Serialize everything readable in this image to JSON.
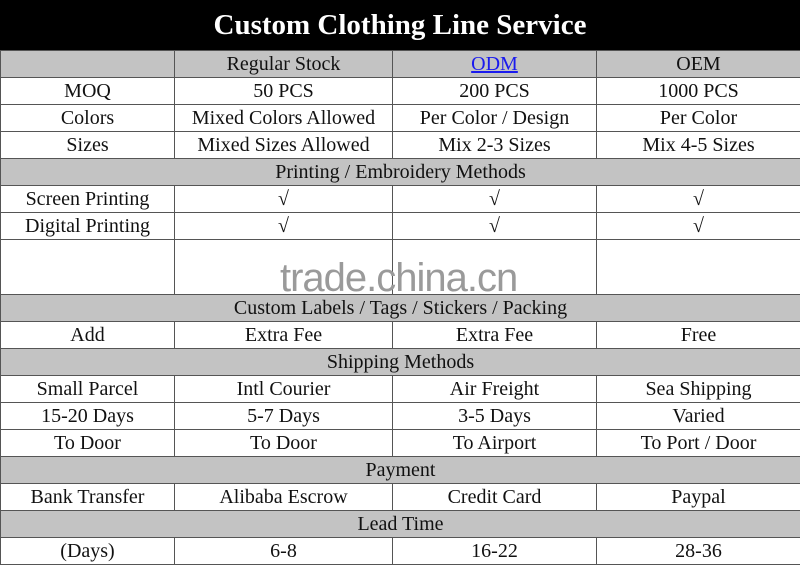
{
  "title": "Custom Clothing Line Service",
  "header": [
    "",
    "Regular Stock",
    "ODM",
    "OEM"
  ],
  "rows1": [
    [
      "MOQ",
      "50 PCS",
      "200 PCS",
      "1000 PCS"
    ],
    [
      "Colors",
      "Mixed Colors Allowed",
      "Per Color / Design",
      "Per Color"
    ],
    [
      "Sizes",
      "Mixed Sizes Allowed",
      "Mix 2-3 Sizes",
      "Mix 4-5 Sizes"
    ]
  ],
  "printing_header": "Printing / Embroidery Methods",
  "printing_rows": [
    [
      "Screen Printing",
      "√",
      "√",
      "√"
    ],
    [
      "Digital Printing",
      "√",
      "√",
      "√"
    ]
  ],
  "labels_header": "Custom Labels / Tags / Stickers / Packing",
  "labels_row": [
    "Add",
    "Extra Fee",
    "Extra Fee",
    "Free"
  ],
  "shipping_header": "Shipping Methods",
  "shipping_rows": [
    [
      "Small Parcel",
      "Intl Courier",
      "Air Freight",
      "Sea Shipping"
    ],
    [
      "15-20 Days",
      "5-7 Days",
      "3-5 Days",
      "Varied"
    ],
    [
      "To Door",
      "To Door",
      "To Airport",
      "To Port / Door"
    ]
  ],
  "payment_header": "Payment",
  "payment_row": [
    "Bank Transfer",
    "Alibaba Escrow",
    "Credit Card",
    "Paypal"
  ],
  "lead_header": "Lead Time",
  "lead_row": [
    "(Days)",
    "6-8",
    "16-22",
    "28-36"
  ],
  "watermark": "trade.china.cn"
}
